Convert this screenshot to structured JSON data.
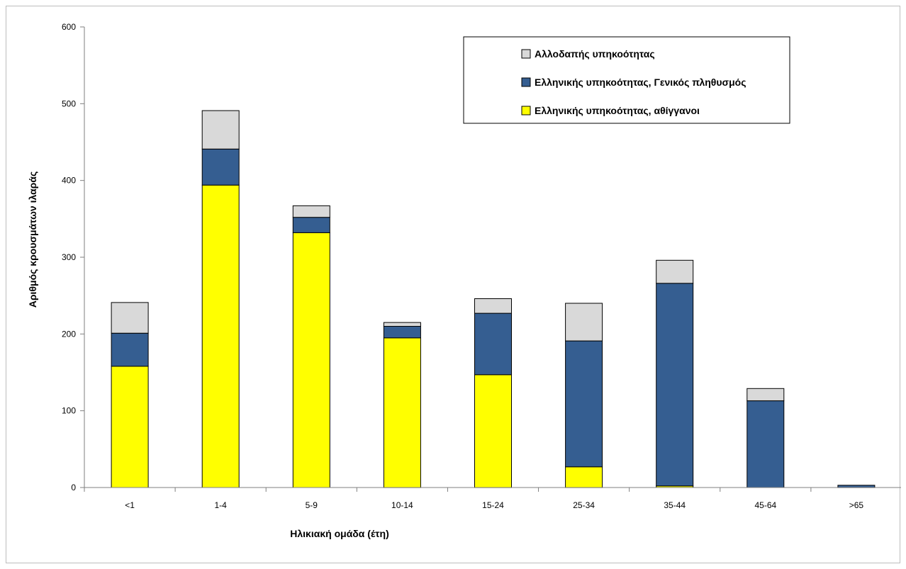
{
  "chart_data": {
    "type": "bar",
    "stacked": true,
    "title": "",
    "xlabel": "Ηλικιακή ομάδα (έτη)",
    "ylabel": "Αριθμός κρουσμάτων ιλαράς",
    "ylim": [
      0,
      600
    ],
    "yticks": [
      0,
      100,
      200,
      300,
      400,
      500,
      600
    ],
    "grid": false,
    "legend_position": "top-right",
    "categories": [
      "<1",
      "1-4",
      "5-9",
      "10-14",
      "15-24",
      "25-34",
      "35-44",
      "45-64",
      ">65"
    ],
    "series": [
      {
        "name": "Ελληνικής υπηκοότητας, αθίγγανοι",
        "color": "#ffff00",
        "values": [
          158,
          394,
          332,
          195,
          147,
          27,
          2,
          0,
          0
        ]
      },
      {
        "name": "Ελληνικής υπηκοότητας, Γενικός πληθυσμός",
        "color": "#355e91",
        "values": [
          43,
          47,
          20,
          15,
          80,
          164,
          264,
          113,
          3
        ]
      },
      {
        "name": "Αλλοδαπής υπηκοότητας",
        "color": "#d9d9d9",
        "values": [
          40,
          50,
          15,
          5,
          19,
          49,
          30,
          16,
          0
        ]
      }
    ],
    "legend_order": [
      2,
      1,
      0
    ]
  }
}
